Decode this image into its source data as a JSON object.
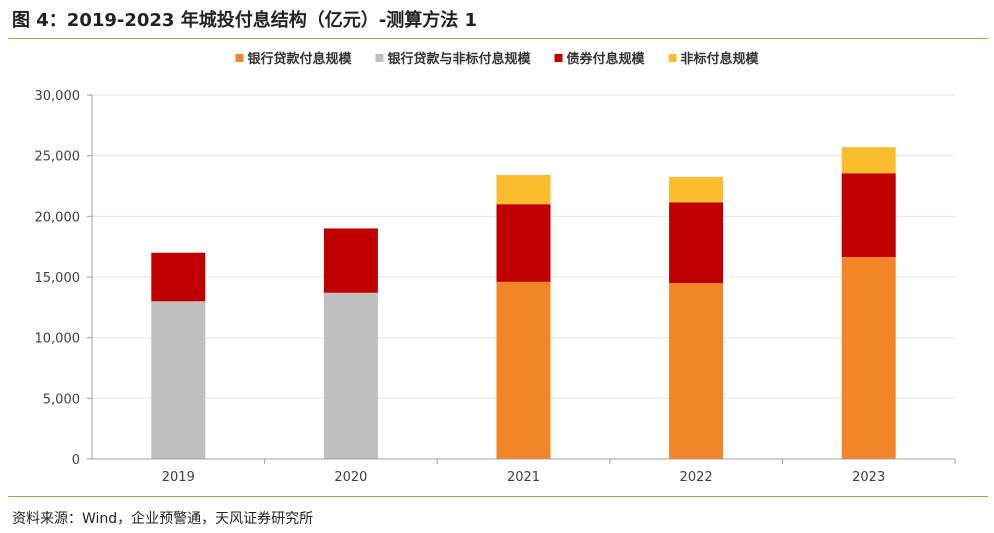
{
  "header": {
    "title": "图 4：2019-2023 年城投付息结构（亿元）-测算方法 1"
  },
  "footer": {
    "source": "资料来源：Wind，企业预警通，天风证券研究所"
  },
  "colors": {
    "rule": "#C8963C",
    "grid": "#E6E6E6",
    "axis": "#A0A0A0"
  },
  "chart_data": {
    "type": "bar",
    "stacked": true,
    "categories": [
      "2019",
      "2020",
      "2021",
      "2022",
      "2023"
    ],
    "series": [
      {
        "name": "银行贷款付息规模",
        "color": "#F28527",
        "values": [
          0,
          0,
          14600,
          14500,
          16650
        ]
      },
      {
        "name": "银行贷款与非标付息规模",
        "color": "#BFBFBF",
        "values": [
          13000,
          13700,
          0,
          0,
          0
        ]
      },
      {
        "name": "债券付息规模",
        "color": "#C00000",
        "values": [
          4000,
          5300,
          6400,
          6650,
          6900
        ]
      },
      {
        "name": "非标付息规模",
        "color": "#FBBC2E",
        "values": [
          0,
          0,
          2400,
          2100,
          2150
        ]
      }
    ],
    "ylim": [
      0,
      30000
    ],
    "yticks": [
      0,
      5000,
      10000,
      15000,
      20000,
      25000,
      30000
    ],
    "ytick_labels": [
      "0",
      "5,000",
      "10,000",
      "15,000",
      "20,000",
      "25,000",
      "30,000"
    ],
    "grid": true,
    "legend_position": "top-center"
  }
}
